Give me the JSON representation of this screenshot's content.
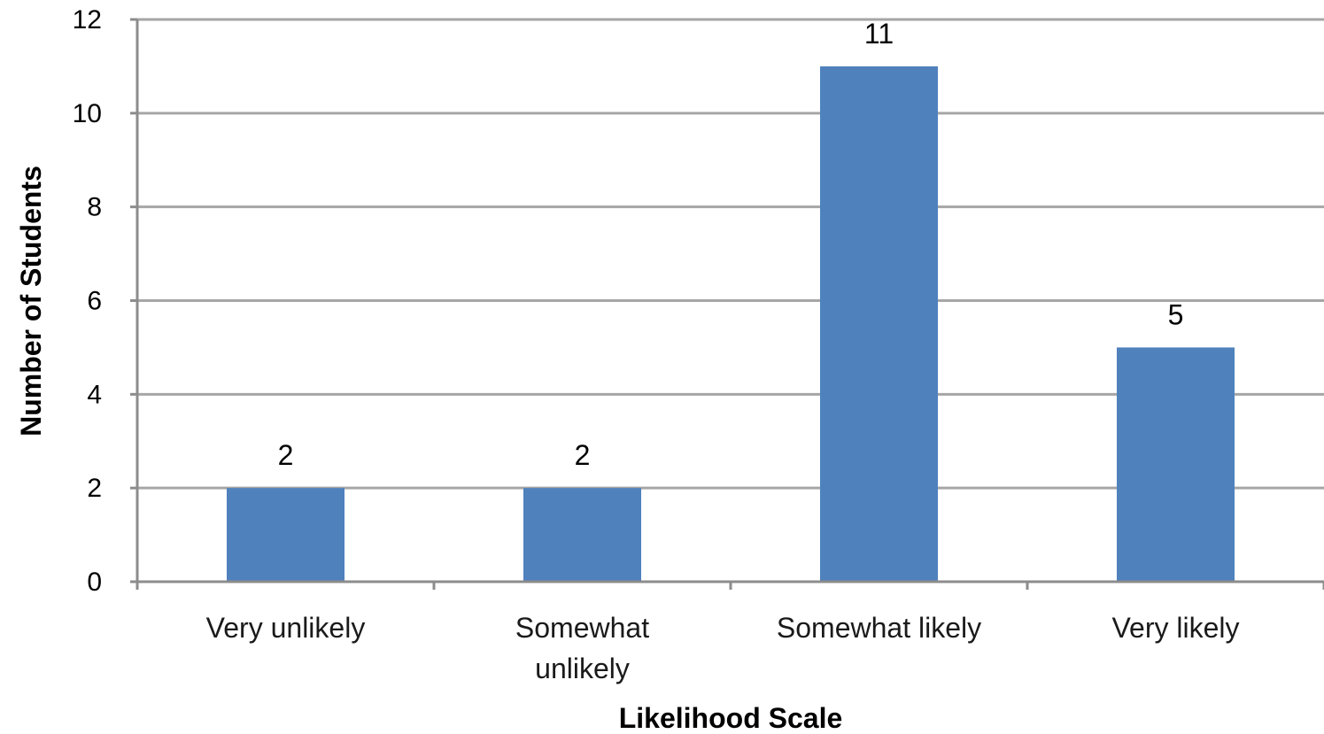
{
  "chart_data": {
    "type": "bar",
    "title": "",
    "xlabel": "Likelihood Scale",
    "ylabel": "Number of Students",
    "categories": [
      [
        "Very unlikely"
      ],
      [
        "Somewhat",
        "unlikely"
      ],
      [
        "Somewhat likely"
      ],
      [
        "Very likely"
      ]
    ],
    "values": [
      2,
      2,
      11,
      5
    ],
    "data_labels": [
      "2",
      "2",
      "11",
      "5"
    ],
    "ylim": [
      0,
      12
    ],
    "yticks": [
      "0",
      "2",
      "4",
      "6",
      "8",
      "10",
      "12"
    ],
    "grid": true,
    "legend": "none",
    "colors": {
      "bar": "#4f81bd",
      "grid": "#a6a6a6",
      "axis": "#8c8c8c"
    }
  }
}
